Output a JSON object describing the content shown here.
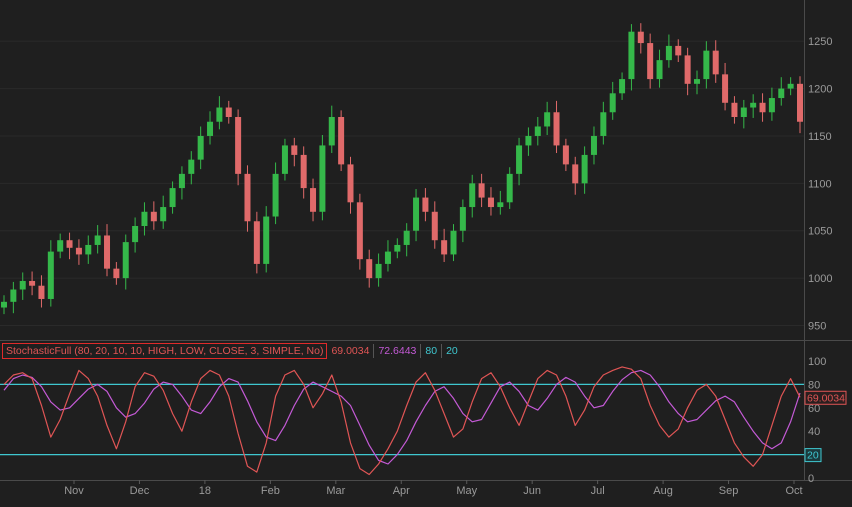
{
  "chart_data": {
    "type": "candlestick",
    "price": {
      "y_ticks": [
        950,
        1000,
        1050,
        1100,
        1150,
        1200,
        1250
      ],
      "ylim": [
        940,
        1285
      ],
      "close": [
        975,
        988,
        997,
        992,
        978,
        1028,
        1040,
        1032,
        1025,
        1035,
        1045,
        1010,
        1000,
        1038,
        1055,
        1070,
        1060,
        1075,
        1095,
        1110,
        1125,
        1150,
        1165,
        1180,
        1170,
        1110,
        1060,
        1015,
        1065,
        1110,
        1140,
        1130,
        1095,
        1070,
        1140,
        1170,
        1120,
        1080,
        1020,
        1000,
        1015,
        1028,
        1035,
        1050,
        1085,
        1070,
        1040,
        1025,
        1050,
        1075,
        1100,
        1085,
        1075,
        1080,
        1110,
        1140,
        1150,
        1160,
        1175,
        1140,
        1120,
        1100,
        1130,
        1150,
        1175,
        1195,
        1210,
        1260,
        1248,
        1210,
        1230,
        1245,
        1235,
        1205,
        1210,
        1240,
        1215,
        1185,
        1170,
        1180,
        1185,
        1175,
        1190,
        1200,
        1205,
        1165
      ]
    },
    "oscillator": {
      "title": "StochasticFull (80, 20, 10, 10, HIGH, LOW, CLOSE, 3, SIMPLE, No)",
      "values": [
        "69.0034",
        "72.6443",
        "80",
        "20"
      ],
      "y_ticks": [
        0,
        20,
        40,
        60,
        80,
        100
      ],
      "ylim": [
        0,
        100
      ],
      "overbought": 80,
      "oversold": 20,
      "current_k": "69.0034",
      "k": [
        80,
        88,
        90,
        85,
        62,
        35,
        50,
        72,
        92,
        85,
        70,
        45,
        25,
        48,
        78,
        90,
        87,
        75,
        55,
        40,
        65,
        85,
        92,
        88,
        70,
        38,
        10,
        5,
        30,
        70,
        88,
        92,
        80,
        60,
        72,
        88,
        65,
        30,
        8,
        3,
        12,
        25,
        40,
        62,
        82,
        90,
        75,
        55,
        35,
        42,
        65,
        85,
        90,
        78,
        60,
        45,
        65,
        85,
        92,
        88,
        70,
        45,
        58,
        78,
        88,
        92,
        95,
        93,
        85,
        62,
        45,
        35,
        42,
        60,
        75,
        80,
        70,
        50,
        30,
        18,
        10,
        20,
        45,
        70,
        85,
        69
      ],
      "d": [
        75,
        85,
        88,
        86,
        78,
        65,
        58,
        60,
        68,
        76,
        80,
        74,
        60,
        52,
        55,
        64,
        76,
        82,
        80,
        70,
        58,
        55,
        65,
        78,
        85,
        82,
        66,
        48,
        35,
        32,
        45,
        62,
        76,
        82,
        78,
        74,
        70,
        62,
        45,
        28,
        15,
        12,
        20,
        32,
        48,
        62,
        74,
        78,
        68,
        55,
        48,
        50,
        64,
        78,
        82,
        74,
        62,
        58,
        68,
        80,
        86,
        82,
        70,
        60,
        62,
        74,
        84,
        90,
        92,
        88,
        78,
        65,
        55,
        48,
        50,
        58,
        66,
        70,
        65,
        52,
        40,
        30,
        25,
        30,
        48,
        72.6443
      ]
    },
    "x_labels": [
      "Nov",
      "Dec",
      "18",
      "Feb",
      "Mar",
      "Apr",
      "May",
      "Jun",
      "Jul",
      "Aug",
      "Sep",
      "Oct"
    ],
    "badges": {
      "current_k": "69.0034",
      "oversold": "20"
    },
    "colors": {
      "background": "#1f1f1f",
      "up": "#35b84a",
      "down": "#e06a6a",
      "k_line": "#e05555",
      "d_line": "#c45ad6",
      "levels": "#3fc7d0",
      "grid": "#555555",
      "text": "#9a9a9a"
    }
  }
}
